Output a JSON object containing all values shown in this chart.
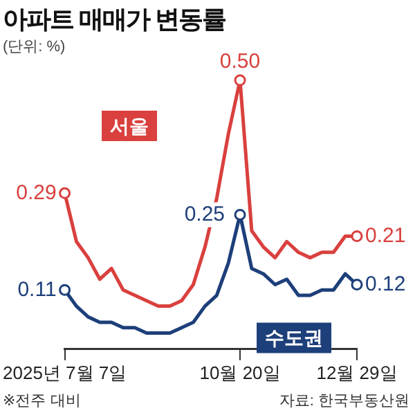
{
  "chart_data": {
    "type": "line",
    "title": "아파트 매매가 변동률",
    "subtitle": "(단위: %)",
    "categories": [
      "2025년 7월 7일",
      null,
      null,
      null,
      null,
      null,
      null,
      null,
      null,
      null,
      null,
      null,
      null,
      null,
      null,
      "10월 20일",
      null,
      null,
      null,
      null,
      null,
      null,
      null,
      null,
      null,
      "12월 29일"
    ],
    "series": [
      {
        "name": "서울",
        "color": "#d9403e",
        "values": [
          0.29,
          0.2,
          0.17,
          0.13,
          0.15,
          0.11,
          0.1,
          0.09,
          0.08,
          0.08,
          0.09,
          0.12,
          0.19,
          0.28,
          0.4,
          0.5,
          0.22,
          0.19,
          0.17,
          0.2,
          0.18,
          0.17,
          0.18,
          0.18,
          0.21,
          0.21
        ],
        "value_labels": [
          "0.29",
          null,
          null,
          null,
          null,
          null,
          null,
          null,
          null,
          null,
          null,
          null,
          null,
          null,
          null,
          "0.50",
          null,
          null,
          null,
          null,
          null,
          null,
          null,
          null,
          null,
          "0.21"
        ]
      },
      {
        "name": "수도권",
        "color": "#1d3f7a",
        "values": [
          0.11,
          0.08,
          0.06,
          0.05,
          0.05,
          0.04,
          0.04,
          0.03,
          0.03,
          0.03,
          0.04,
          0.05,
          0.08,
          0.1,
          0.16,
          0.25,
          0.15,
          0.14,
          0.12,
          0.13,
          0.1,
          0.1,
          0.11,
          0.11,
          0.14,
          0.12
        ],
        "value_labels": [
          "0.11",
          null,
          null,
          null,
          null,
          null,
          null,
          null,
          null,
          null,
          null,
          null,
          null,
          null,
          null,
          "0.25",
          null,
          null,
          null,
          null,
          null,
          null,
          null,
          null,
          null,
          "0.12"
        ]
      }
    ],
    "grid": false,
    "legend": false,
    "tick_labels": "x",
    "annotations": [
      "※전주 대비",
      "자료: 한국부동산원"
    ]
  }
}
